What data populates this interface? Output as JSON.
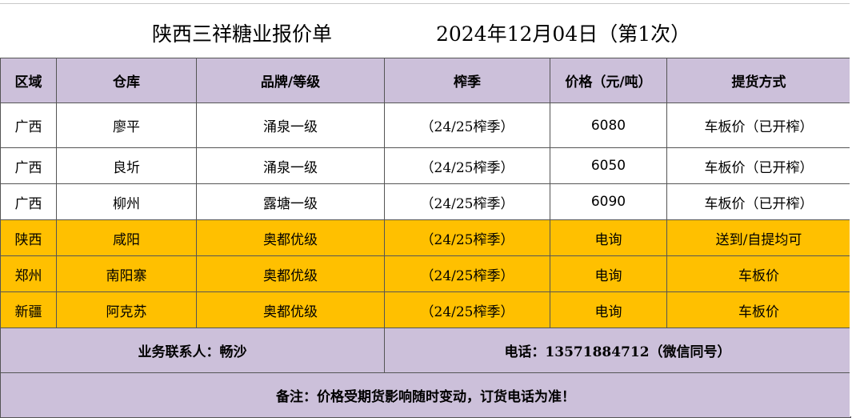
{
  "title": {
    "main": "陕西三祥糖业报价单",
    "date": "2024年12月04日（第1次）"
  },
  "table": {
    "headers": [
      "区域",
      "仓库",
      "品牌/等级",
      "榨季",
      "价格（元/吨）",
      "提货方式"
    ],
    "rows": [
      {
        "region": "广西",
        "warehouse": "廖平",
        "brand": "涌泉一级",
        "season": "（24/25榨季）",
        "price": "6080",
        "pickup": "车板价（已开榨）",
        "highlight": false
      },
      {
        "region": "广西",
        "warehouse": "良圻",
        "brand": "涌泉一级",
        "season": "（24/25榨季）",
        "price": "6050",
        "pickup": "车板价（已开榨）",
        "highlight": false
      },
      {
        "region": "广西",
        "warehouse": "柳州",
        "brand": "露塘一级",
        "season": "（24/25榨季）",
        "price": "6090",
        "pickup": "车板价（已开榨）",
        "highlight": false
      },
      {
        "region": "陕西",
        "warehouse": "咸阳",
        "brand": "奥都优级",
        "season": "（24/25榨季）",
        "price": "电询",
        "pickup": "送到/自提均可",
        "highlight": true
      },
      {
        "region": "郑州",
        "warehouse": "南阳寨",
        "brand": "奥都优级",
        "season": "（24/25榨季）",
        "price": "电询",
        "pickup": "车板价",
        "highlight": true
      },
      {
        "region": "新疆",
        "warehouse": "阿克苏",
        "brand": "奥都优级",
        "season": "（24/25榨季）",
        "price": "电询",
        "pickup": "车板价",
        "highlight": true
      }
    ]
  },
  "contact": {
    "person": "业务联系人：畅沙",
    "phone": "电话：13571884712（微信同号）"
  },
  "note": "备注：价格受期货影响随时变动，订货电话为准！",
  "colors": {
    "header_bg": "#ccc0da",
    "highlight_bg": "#ffc000",
    "white_bg": "#ffffff"
  }
}
